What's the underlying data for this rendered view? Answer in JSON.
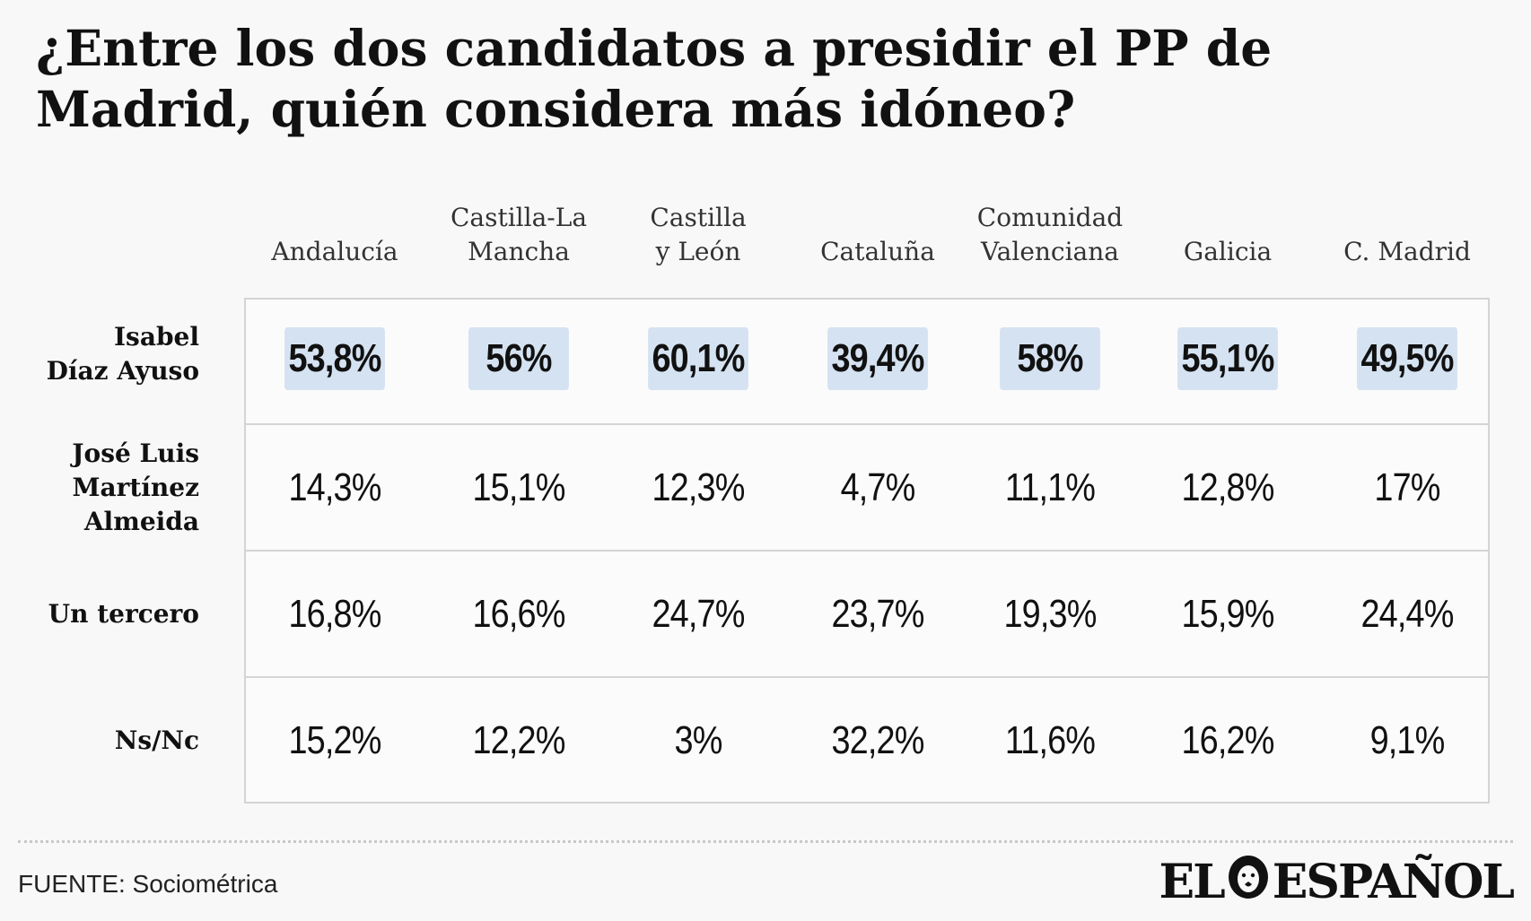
{
  "title": "¿Entre los dos candidatos a presidir el PP de Madrid, quién considera más idóneo?",
  "chart_data": {
    "type": "table",
    "columns": [
      "Andalucía",
      "Castilla-La\nMancha",
      "Castilla\ny León",
      "Cataluña",
      "Comunidad\nValenciana",
      "Galicia",
      "C. Madrid"
    ],
    "rows": [
      {
        "label": "Isabel\nDíaz Ayuso",
        "values": [
          "53,8%",
          "56%",
          "60,1%",
          "39,4%",
          "58%",
          "55,1%",
          "49,5%"
        ],
        "highlight": true
      },
      {
        "label": "José Luis\nMartínez\nAlmeida",
        "values": [
          "14,3%",
          "15,1%",
          "12,3%",
          "4,7%",
          "11,1%",
          "12,8%",
          "17%"
        ],
        "highlight": false
      },
      {
        "label": "Un tercero",
        "values": [
          "16,8%",
          "16,6%",
          "24,7%",
          "23,7%",
          "19,3%",
          "15,9%",
          "24,4%"
        ],
        "highlight": false
      },
      {
        "label": "Ns/Nc",
        "values": [
          "15,2%",
          "12,2%",
          "3%",
          "32,2%",
          "11,6%",
          "16,2%",
          "9,1%"
        ],
        "highlight": false
      }
    ],
    "highlight_color": "#d5e2f1"
  },
  "source": "FUENTE: Sociométrica",
  "logo": {
    "left": "EL",
    "right": "ESPAÑOL",
    "icon": "lion-icon"
  }
}
